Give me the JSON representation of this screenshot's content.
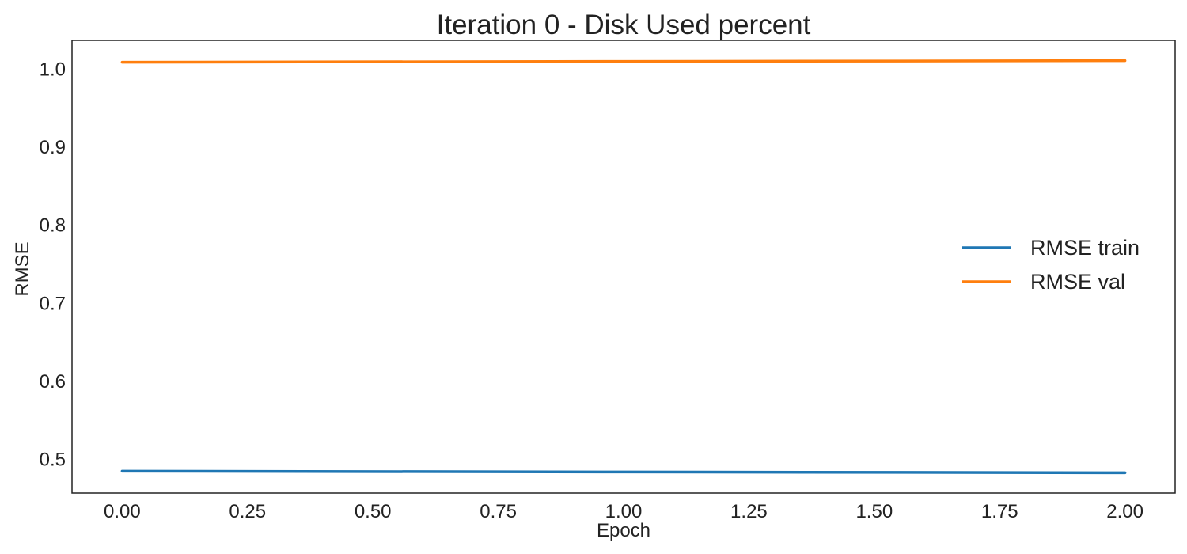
{
  "chart_data": {
    "type": "line",
    "title": "Iteration 0 - Disk Used percent",
    "xlabel": "Epoch",
    "ylabel": "RMSE",
    "x": [
      0,
      1,
      2
    ],
    "series": [
      {
        "name": "RMSE train",
        "values": [
          0.485,
          0.484,
          0.483
        ],
        "color": "#1f77b4"
      },
      {
        "name": "RMSE val",
        "values": [
          1.009,
          1.01,
          1.011
        ],
        "color": "#ff7f0e"
      }
    ],
    "xlim": [
      -0.1,
      2.1
    ],
    "ylim": [
      0.457,
      1.037
    ],
    "xticks": [
      0,
      0.25,
      0.5,
      0.75,
      1,
      1.25,
      1.5,
      1.75,
      2
    ],
    "xtick_labels": [
      "0.00",
      "0.25",
      "0.50",
      "0.75",
      "1.00",
      "1.25",
      "1.50",
      "1.75",
      "2.00"
    ],
    "yticks": [
      0.5,
      0.6,
      0.7,
      0.8,
      0.9,
      1.0
    ],
    "ytick_labels": [
      "0.5",
      "0.6",
      "0.7",
      "0.8",
      "0.9",
      "1.0"
    ],
    "grid": false,
    "legend_position": "center-right"
  }
}
